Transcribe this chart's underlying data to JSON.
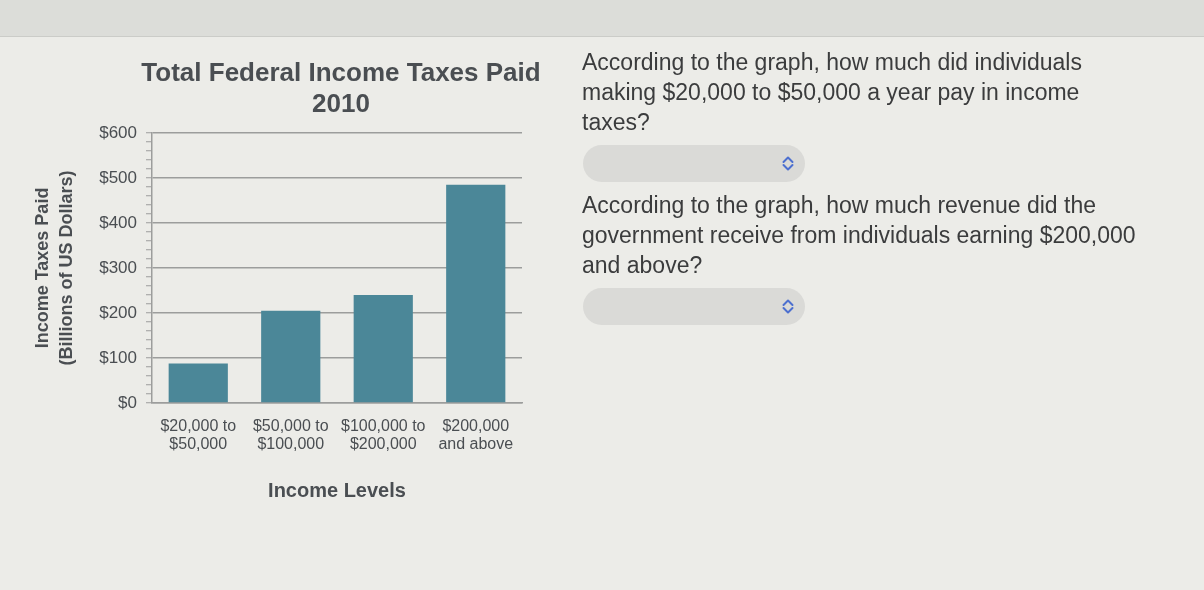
{
  "chart_data": {
    "type": "bar",
    "title": "Total Federal Income Taxes Paid",
    "subtitle": "2010",
    "xlabel": "Income Levels",
    "ylabel": "Income Taxes Paid (Billions of US Dollars)",
    "categories": [
      "$20,000 to $50,000",
      "$50,000 to $100,000",
      "$100,000 to $200,000",
      "$200,000 and above"
    ],
    "values": [
      88,
      205,
      240,
      485
    ],
    "color": "#4b8798",
    "ylim": [
      0,
      600
    ],
    "yticks": [
      {
        "value": 0,
        "label": "$0"
      },
      {
        "value": 20,
        "label": null
      },
      {
        "value": 40,
        "label": null
      },
      {
        "value": 60,
        "label": null
      },
      {
        "value": 80,
        "label": null
      },
      {
        "value": 100,
        "label": "$100"
      },
      {
        "value": 120,
        "label": null
      },
      {
        "value": 140,
        "label": null
      },
      {
        "value": 160,
        "label": null
      },
      {
        "value": 180,
        "label": null
      },
      {
        "value": 200,
        "label": "$200"
      },
      {
        "value": 220,
        "label": null
      },
      {
        "value": 240,
        "label": null
      },
      {
        "value": 260,
        "label": null
      },
      {
        "value": 280,
        "label": null
      },
      {
        "value": 300,
        "label": "$300"
      },
      {
        "value": 320,
        "label": null
      },
      {
        "value": 340,
        "label": null
      },
      {
        "value": 360,
        "label": null
      },
      {
        "value": 380,
        "label": null
      },
      {
        "value": 400,
        "label": "$400"
      },
      {
        "value": 420,
        "label": null
      },
      {
        "value": 440,
        "label": null
      },
      {
        "value": 460,
        "label": null
      },
      {
        "value": 480,
        "label": null
      },
      {
        "value": 500,
        "label": "$500"
      },
      {
        "value": 520,
        "label": null
      },
      {
        "value": 540,
        "label": null
      },
      {
        "value": 560,
        "label": null
      },
      {
        "value": 580,
        "label": null
      },
      {
        "value": 600,
        "label": "$600"
      }
    ],
    "grid": "y",
    "annotations": [
      "According to the graph, how much did individuals making $20,000 to $50,000 a year pay in income taxes?",
      "According to the graph, how much revenue did the government receive from individuals earning $200,000 and above?"
    ]
  }
}
